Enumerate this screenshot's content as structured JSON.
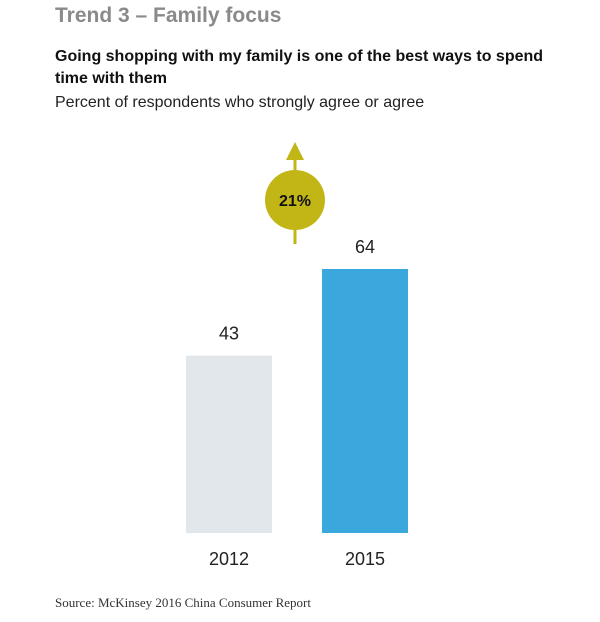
{
  "trend_title": "Trend 3 – Family focus",
  "headline": "Going shopping with my family is one of the best ways to spend time with them",
  "subhead": "Percent of respondents who strongly agree or agree",
  "chart_data": {
    "type": "bar",
    "categories": [
      "2012",
      "2015"
    ],
    "values": [
      43,
      64
    ],
    "bar_colors": [
      "#e1e7eb",
      "#3aa8dd"
    ],
    "ylim": [
      0,
      64
    ],
    "grid": false,
    "annotation": {
      "text": "21%",
      "color": "#c2b617",
      "arrow": "up"
    }
  },
  "source": "Source: McKinsey 2016 China Consumer Report"
}
